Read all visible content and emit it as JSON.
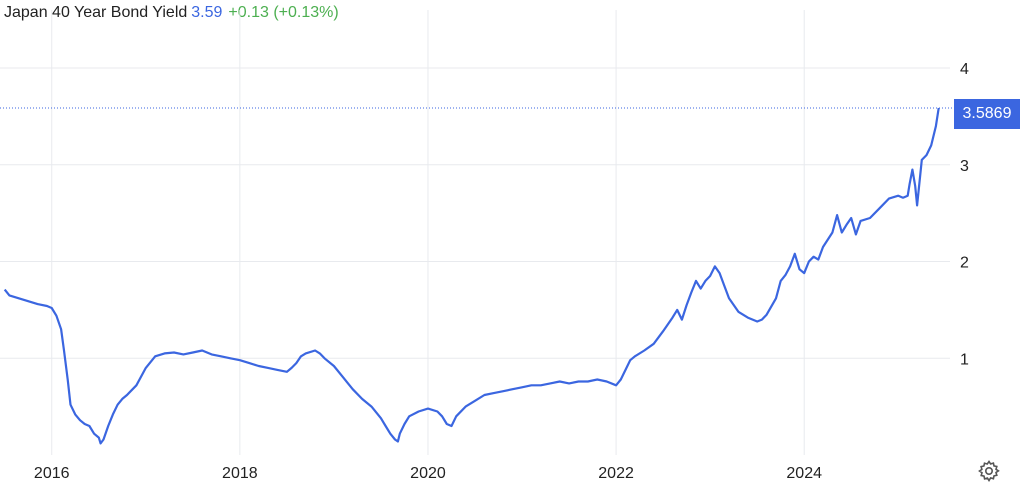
{
  "legend": {
    "title": "Japan 40 Year Bond Yield",
    "value": "3.59",
    "change": "+0.13 (+0.13%)"
  },
  "last_value_label": "3.5869",
  "icons": {
    "settings": "gear-icon"
  },
  "colors": {
    "line": "#3b66e0",
    "grid": "#e8eaee",
    "up": "#4caf50"
  },
  "chart_data": {
    "type": "line",
    "title": "Japan 40 Year Bond Yield",
    "xlabel": "",
    "ylabel": "",
    "xlim": [
      2015.45,
      2025.55
    ],
    "ylim": [
      0,
      4.6
    ],
    "x_ticks": [
      2016,
      2018,
      2020,
      2022,
      2024
    ],
    "x_tick_labels": [
      "2016",
      "2018",
      "2020",
      "2022",
      "2024"
    ],
    "y_ticks": [
      1,
      2,
      3,
      4
    ],
    "y_tick_labels": [
      "1",
      "2",
      "3",
      "4"
    ],
    "grid": true,
    "y_axis_position": "right",
    "series": [
      {
        "x": [
          2015.5,
          2015.55,
          2015.65,
          2015.75,
          2015.85,
          2015.95,
          2016.0,
          2016.05,
          2016.1,
          2016.13,
          2016.17,
          2016.2,
          2016.25,
          2016.3,
          2016.35,
          2016.4,
          2016.45,
          2016.5,
          2016.52,
          2016.55,
          2016.6,
          2016.65,
          2016.7,
          2016.75,
          2016.8,
          2016.9,
          2017.0,
          2017.1,
          2017.2,
          2017.3,
          2017.4,
          2017.5,
          2017.6,
          2017.7,
          2017.8,
          2017.9,
          2018.0,
          2018.1,
          2018.2,
          2018.3,
          2018.4,
          2018.5,
          2018.55,
          2018.6,
          2018.65,
          2018.7,
          2018.8,
          2018.85,
          2018.9,
          2019.0,
          2019.1,
          2019.2,
          2019.3,
          2019.4,
          2019.5,
          2019.55,
          2019.6,
          2019.65,
          2019.68,
          2019.7,
          2019.75,
          2019.8,
          2019.9,
          2020.0,
          2020.1,
          2020.15,
          2020.2,
          2020.25,
          2020.3,
          2020.4,
          2020.5,
          2020.6,
          2020.7,
          2020.8,
          2020.9,
          2021.0,
          2021.1,
          2021.2,
          2021.3,
          2021.4,
          2021.5,
          2021.6,
          2021.7,
          2021.8,
          2021.9,
          2022.0,
          2022.05,
          2022.1,
          2022.15,
          2022.2,
          2022.3,
          2022.4,
          2022.5,
          2022.6,
          2022.65,
          2022.7,
          2022.75,
          2022.8,
          2022.85,
          2022.9,
          2022.95,
          2023.0,
          2023.05,
          2023.1,
          2023.15,
          2023.2,
          2023.3,
          2023.35,
          2023.4,
          2023.5,
          2023.55,
          2023.6,
          2023.7,
          2023.75,
          2023.8,
          2023.85,
          2023.9,
          2023.95,
          2024.0,
          2024.05,
          2024.1,
          2024.15,
          2024.2,
          2024.3,
          2024.35,
          2024.4,
          2024.45,
          2024.5,
          2024.55,
          2024.6,
          2024.7,
          2024.8,
          2024.9,
          2025.0,
          2025.05,
          2025.1,
          2025.12,
          2025.15,
          2025.18,
          2025.2,
          2025.25,
          2025.3,
          2025.35,
          2025.4,
          2025.43
        ],
        "y": [
          1.71,
          1.65,
          1.62,
          1.59,
          1.56,
          1.54,
          1.52,
          1.44,
          1.3,
          1.08,
          0.78,
          0.52,
          0.42,
          0.36,
          0.32,
          0.3,
          0.22,
          0.18,
          0.12,
          0.16,
          0.3,
          0.42,
          0.52,
          0.58,
          0.62,
          0.72,
          0.9,
          1.02,
          1.05,
          1.06,
          1.04,
          1.06,
          1.08,
          1.04,
          1.02,
          1.0,
          0.98,
          0.95,
          0.92,
          0.9,
          0.88,
          0.86,
          0.9,
          0.95,
          1.02,
          1.05,
          1.08,
          1.05,
          1.0,
          0.92,
          0.8,
          0.68,
          0.58,
          0.5,
          0.38,
          0.3,
          0.22,
          0.16,
          0.14,
          0.22,
          0.32,
          0.4,
          0.45,
          0.48,
          0.45,
          0.4,
          0.32,
          0.3,
          0.4,
          0.5,
          0.56,
          0.62,
          0.64,
          0.66,
          0.68,
          0.7,
          0.72,
          0.72,
          0.74,
          0.76,
          0.74,
          0.76,
          0.76,
          0.78,
          0.76,
          0.72,
          0.78,
          0.88,
          0.98,
          1.02,
          1.08,
          1.15,
          1.28,
          1.42,
          1.5,
          1.4,
          1.55,
          1.68,
          1.8,
          1.72,
          1.8,
          1.85,
          1.95,
          1.88,
          1.75,
          1.62,
          1.48,
          1.45,
          1.42,
          1.38,
          1.4,
          1.45,
          1.62,
          1.8,
          1.86,
          1.95,
          2.08,
          1.92,
          1.88,
          2.0,
          2.05,
          2.02,
          2.15,
          2.3,
          2.48,
          2.3,
          2.38,
          2.45,
          2.28,
          2.42,
          2.45,
          2.55,
          2.65,
          2.68,
          2.66,
          2.68,
          2.8,
          2.95,
          2.78,
          2.58,
          3.05,
          3.1,
          3.2,
          3.4,
          3.5869
        ]
      }
    ]
  }
}
